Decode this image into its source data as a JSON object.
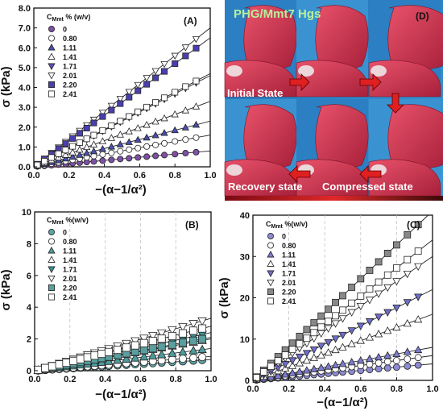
{
  "chart_data": [
    {
      "panel": "(A)",
      "type": "scatter",
      "xlabel": "−(α−1/α²)",
      "ylabel": "σ (kPa)",
      "xlim": [
        0,
        1.0
      ],
      "ylim": [
        0,
        8.0
      ],
      "xticks": [
        "0.0",
        "0.2",
        "0.4",
        "0.6",
        "0.8",
        "1.0"
      ],
      "yticks": [
        "0.0",
        "1.0",
        "2.0",
        "3.0",
        "4.0",
        "5.0",
        "6.0",
        "7.0",
        "8.0"
      ],
      "legend_title": "C",
      "legend_title_sub": "Mmt",
      "legend_title_suffix": " % (w/v)",
      "legend_position": "top-left",
      "series": [
        {
          "name": "0",
          "marker": "circle",
          "fill": "#7e4fa3",
          "slope": 0.8
        },
        {
          "name": "0.80",
          "marker": "circle-open",
          "fill": "#ffffff",
          "slope": 1.6
        },
        {
          "name": "1.11",
          "marker": "triangle-up",
          "fill": "#4a4fb0",
          "slope": 2.3
        },
        {
          "name": "1.41",
          "marker": "triangle-up-open",
          "fill": "#ffffff",
          "slope": 3.3
        },
        {
          "name": "1.71",
          "marker": "triangle-down",
          "fill": "#5b50b8",
          "slope": 4.6
        },
        {
          "name": "2.01",
          "marker": "triangle-down-open",
          "fill": "#ffffff",
          "slope": 7.0
        },
        {
          "name": "2.20",
          "marker": "square",
          "fill": "#4a3fae",
          "slope": 6.5
        },
        {
          "name": "2.41",
          "marker": "square-open",
          "fill": "#ffffff",
          "slope": 4.7
        }
      ],
      "x_points": [
        0.02,
        0.06,
        0.1,
        0.14,
        0.18,
        0.22,
        0.26,
        0.3,
        0.34,
        0.39,
        0.44,
        0.49,
        0.54,
        0.59,
        0.64,
        0.69,
        0.74,
        0.8,
        0.86,
        0.92
      ]
    },
    {
      "panel": "(B)",
      "type": "scatter",
      "xlabel": "−(α−1/α²)",
      "ylabel": "σ (kPa)",
      "xlim": [
        0,
        1.0
      ],
      "ylim": [
        0,
        10
      ],
      "xticks": [
        "0.0",
        "0.2",
        "0.4",
        "0.6",
        "0.8",
        "1.0"
      ],
      "yticks": [
        "0",
        "2",
        "4",
        "6",
        "8",
        "10"
      ],
      "legend_title": "C",
      "legend_title_sub": "Mmt",
      "legend_title_suffix": " %(w/v)",
      "legend_position": "top-left",
      "series": [
        {
          "name": "0",
          "marker": "circle",
          "fill": "#5aa4a6",
          "slope": 0.7
        },
        {
          "name": "0.80",
          "marker": "circle-open",
          "fill": "#ffffff",
          "slope": 0.9
        },
        {
          "name": "1.11",
          "marker": "triangle-up",
          "fill": "#4d9a9c",
          "slope": 1.4
        },
        {
          "name": "1.41",
          "marker": "triangle-up-open",
          "fill": "#ffffff",
          "slope": 2.0
        },
        {
          "name": "1.71",
          "marker": "triangle-down",
          "fill": "#3c8f92",
          "slope": 2.4
        },
        {
          "name": "2.01",
          "marker": "triangle-down-open",
          "fill": "#ffffff",
          "slope": 3.3
        },
        {
          "name": "2.20",
          "marker": "square",
          "fill": "#5a9e9f",
          "slope": 2.1
        },
        {
          "name": "2.41",
          "marker": "square-open",
          "fill": "#ffffff",
          "slope": 2.8
        }
      ],
      "x_points": [
        0.02,
        0.06,
        0.1,
        0.14,
        0.18,
        0.22,
        0.26,
        0.3,
        0.34,
        0.38,
        0.42,
        0.47,
        0.52,
        0.57,
        0.62,
        0.67,
        0.72,
        0.78,
        0.84,
        0.9,
        0.95
      ]
    },
    {
      "panel": "(C)",
      "type": "scatter",
      "xlabel": "−(α−1/α²)",
      "ylabel": "σ (kPa)",
      "xlim": [
        0,
        1.0
      ],
      "ylim": [
        0,
        40
      ],
      "xticks": [
        "0.0",
        "0.2",
        "0.4",
        "0.6",
        "0.8",
        "1.0"
      ],
      "yticks": [
        "0",
        "10",
        "20",
        "30",
        "40"
      ],
      "legend_title": "C",
      "legend_title_sub": "Mmt",
      "legend_title_suffix": " %(w/v)",
      "legend_position": "top-left",
      "series": [
        {
          "name": "0",
          "marker": "circle",
          "fill": "#8c8ad0",
          "slope": 4.0
        },
        {
          "name": "0.80",
          "marker": "circle-open",
          "fill": "#ffffff",
          "slope": 6.0
        },
        {
          "name": "1.11",
          "marker": "triangle-up",
          "fill": "#7d7bd0",
          "slope": 8.0
        },
        {
          "name": "1.41",
          "marker": "triangle-up-open",
          "fill": "#ffffff",
          "slope": 16.0
        },
        {
          "name": "1.71",
          "marker": "triangle-down",
          "fill": "#6f6dc8",
          "slope": 22.0
        },
        {
          "name": "2.01",
          "marker": "triangle-down-open",
          "fill": "#ffffff",
          "slope": 30.0
        },
        {
          "name": "2.20",
          "marker": "square",
          "fill": "#888888",
          "slope": 41.0
        },
        {
          "name": "2.41",
          "marker": "square-open",
          "fill": "#ffffff",
          "slope": 34.0
        }
      ],
      "x_points": [
        0.02,
        0.06,
        0.1,
        0.14,
        0.18,
        0.22,
        0.26,
        0.3,
        0.34,
        0.38,
        0.42,
        0.46,
        0.5,
        0.55,
        0.6,
        0.65,
        0.7,
        0.75,
        0.8,
        0.86,
        0.92
      ]
    }
  ],
  "photo_panel": {
    "panel": "(D)",
    "title": "PHG/Mmt7 Hgs",
    "labels": {
      "initial": "Initial State",
      "recovery": "Recovery state",
      "compressed": "Compressed state"
    },
    "colors": {
      "background": "#2f86c9",
      "hydrogel": "#d6344f",
      "arrow": "#e02020"
    }
  }
}
